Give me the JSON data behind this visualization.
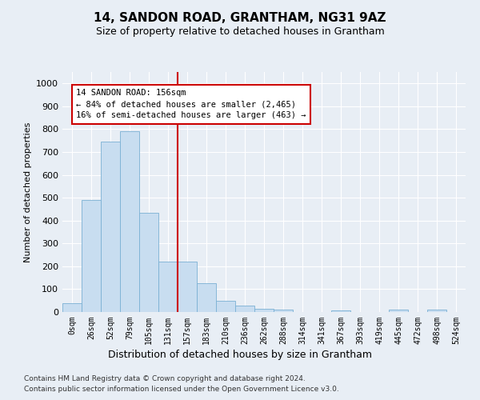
{
  "title": "14, SANDON ROAD, GRANTHAM, NG31 9AZ",
  "subtitle": "Size of property relative to detached houses in Grantham",
  "xlabel": "Distribution of detached houses by size in Grantham",
  "ylabel": "Number of detached properties",
  "bar_color": "#c8ddf0",
  "bar_edge_color": "#7ab0d4",
  "categories": [
    "0sqm",
    "26sqm",
    "52sqm",
    "79sqm",
    "105sqm",
    "131sqm",
    "157sqm",
    "183sqm",
    "210sqm",
    "236sqm",
    "262sqm",
    "288sqm",
    "314sqm",
    "341sqm",
    "367sqm",
    "393sqm",
    "419sqm",
    "445sqm",
    "472sqm",
    "498sqm",
    "524sqm"
  ],
  "values": [
    40,
    490,
    745,
    790,
    435,
    220,
    220,
    125,
    50,
    27,
    13,
    10,
    0,
    0,
    8,
    0,
    0,
    10,
    0,
    10,
    0
  ],
  "ylim": [
    0,
    1050
  ],
  "yticks": [
    0,
    100,
    200,
    300,
    400,
    500,
    600,
    700,
    800,
    900,
    1000
  ],
  "property_line_x": 5.5,
  "annotation_line1": "14 SANDON ROAD: 156sqm",
  "annotation_line2": "← 84% of detached houses are smaller (2,465)",
  "annotation_line3": "16% of semi-detached houses are larger (463) →",
  "annotation_box_color": "white",
  "annotation_box_edge": "#cc0000",
  "vline_color": "#cc0000",
  "footer1": "Contains HM Land Registry data © Crown copyright and database right 2024.",
  "footer2": "Contains public sector information licensed under the Open Government Licence v3.0.",
  "fig_bg_color": "#e8eef5",
  "plot_bg_color": "#e8eef5",
  "grid_color": "white"
}
